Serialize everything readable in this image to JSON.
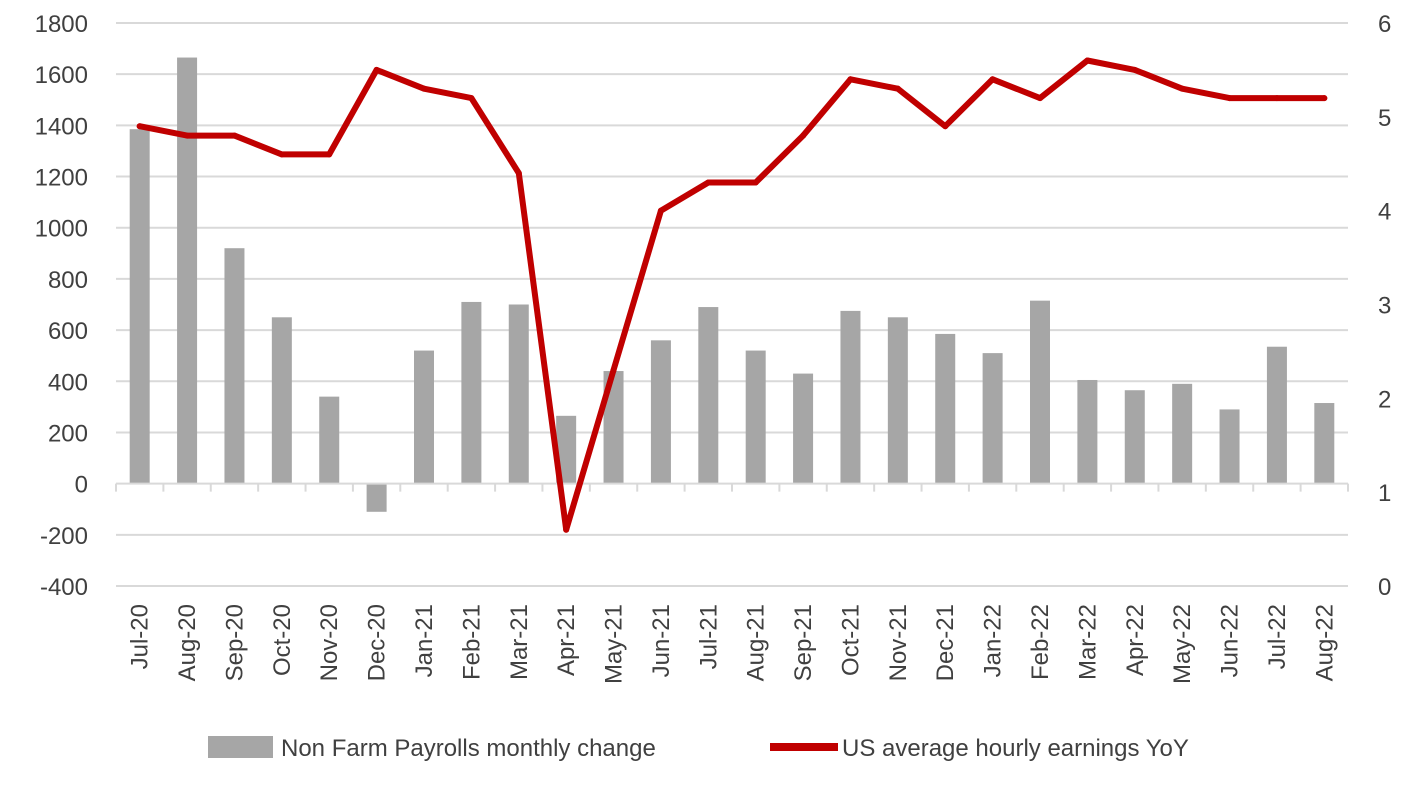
{
  "chart_data": {
    "type": "bar",
    "categories": [
      "Jul-20",
      "Aug-20",
      "Sep-20",
      "Oct-20",
      "Nov-20",
      "Dec-20",
      "Jan-21",
      "Feb-21",
      "Mar-21",
      "Apr-21",
      "May-21",
      "Jun-21",
      "Jul-21",
      "Aug-21",
      "Sep-21",
      "Oct-21",
      "Nov-21",
      "Dec-21",
      "Jan-22",
      "Feb-22",
      "Mar-22",
      "Apr-22",
      "May-22",
      "Jun-22",
      "Jul-22",
      "Aug-22"
    ],
    "series": [
      {
        "name": "Non Farm Payrolls monthly change",
        "type": "bar",
        "axis": "left",
        "color": "#a6a6a6",
        "values": [
          1385,
          1665,
          920,
          650,
          340,
          -110,
          520,
          710,
          700,
          265,
          440,
          560,
          690,
          520,
          430,
          675,
          650,
          585,
          510,
          715,
          405,
          365,
          390,
          290,
          535,
          315
        ]
      },
      {
        "name": "US average hourly earnings YoY",
        "type": "line",
        "axis": "right",
        "color": "#c00000",
        "values": [
          4.9,
          4.8,
          4.8,
          4.6,
          4.6,
          5.5,
          5.3,
          5.2,
          4.4,
          0.6,
          2.3,
          4.0,
          4.3,
          4.3,
          4.8,
          5.4,
          5.3,
          4.9,
          5.4,
          5.2,
          5.6,
          5.5,
          5.3,
          5.2,
          5.2,
          5.2
        ]
      }
    ],
    "y_left": {
      "min": -400,
      "max": 1800,
      "step": 200,
      "ticks": [
        "1800",
        "1600",
        "1400",
        "1200",
        "1000",
        "800",
        "600",
        "400",
        "200",
        "0",
        "-200",
        "-400"
      ]
    },
    "y_right": {
      "min": 0,
      "max": 6,
      "step": 1,
      "ticks": [
        "6",
        "5",
        "4",
        "3",
        "2",
        "1",
        "0"
      ]
    },
    "grid": true,
    "legend_position": "bottom",
    "legend": [
      "Non Farm Payrolls monthly change",
      "US average hourly earnings YoY"
    ]
  }
}
